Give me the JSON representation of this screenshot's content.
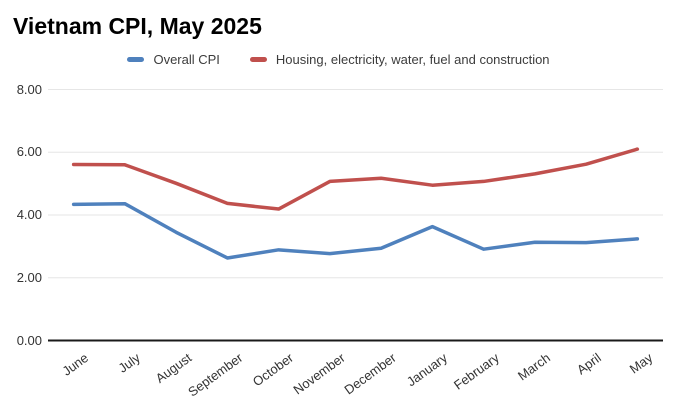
{
  "chart_data": {
    "type": "line",
    "title": "Vietnam CPI, May 2025",
    "categories": [
      "June",
      "July",
      "August",
      "September",
      "October",
      "November",
      "December",
      "January",
      "February",
      "March",
      "April",
      "May"
    ],
    "series": [
      {
        "name": "Overall CPI",
        "color": "#4F81BD",
        "values": [
          4.34,
          4.36,
          3.45,
          2.63,
          2.89,
          2.77,
          2.94,
          3.63,
          2.91,
          3.13,
          3.12,
          3.24
        ]
      },
      {
        "name": "Housing, electricity, water, fuel and construction",
        "color": "#C0504D",
        "values": [
          5.61,
          5.6,
          5.01,
          4.37,
          4.19,
          5.07,
          5.17,
          4.95,
          5.07,
          5.31,
          5.62,
          6.1
        ]
      }
    ],
    "xlabel": "",
    "ylabel": "",
    "ylim": [
      0,
      8
    ],
    "yticks": [
      0,
      2,
      4,
      6,
      8
    ],
    "ytick_labels": [
      "0.00",
      "2.00",
      "4.00",
      "6.00",
      "8.00"
    ],
    "grid": true,
    "legend_position": "top",
    "colors": {
      "background": "#ffffff",
      "gridline": "#e6e6e6",
      "zero_axis": "#1a1a1a",
      "tick_label": "#333333",
      "legend_text": "#3c3c3c",
      "title": "#000000"
    }
  }
}
